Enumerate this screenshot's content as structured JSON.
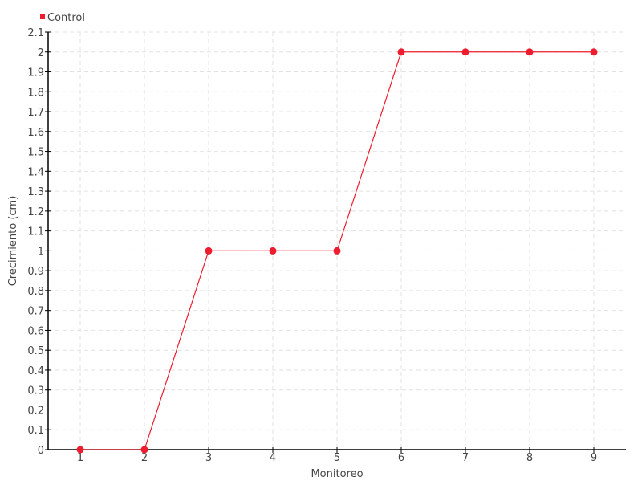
{
  "chart_data": {
    "type": "line",
    "title": "",
    "xlabel": "Monitoreo",
    "ylabel": "Crecimiento (cm)",
    "x": [
      1,
      2,
      3,
      4,
      5,
      6,
      7,
      8,
      9
    ],
    "xlim": [
      0.5,
      9.5
    ],
    "ylim": [
      0,
      2.1
    ],
    "x_ticks": [
      "1",
      "2",
      "3",
      "4",
      "5",
      "6",
      "7",
      "8",
      "9"
    ],
    "y_ticks": [
      "0",
      "0.1",
      "0.2",
      "0.3",
      "0.4",
      "0.5",
      "0.6",
      "0.7",
      "0.8",
      "0.9",
      "1",
      "1.1",
      "1.2",
      "1.3",
      "1.4",
      "1.5",
      "1.6",
      "1.7",
      "1.8",
      "1.9",
      "2",
      "2.1"
    ],
    "grid": true,
    "legend_position": "top-left",
    "series": [
      {
        "name": "Control",
        "color": "#ee1c2e",
        "values": [
          0,
          0,
          1,
          1,
          1,
          2,
          2,
          2,
          2
        ]
      }
    ]
  }
}
